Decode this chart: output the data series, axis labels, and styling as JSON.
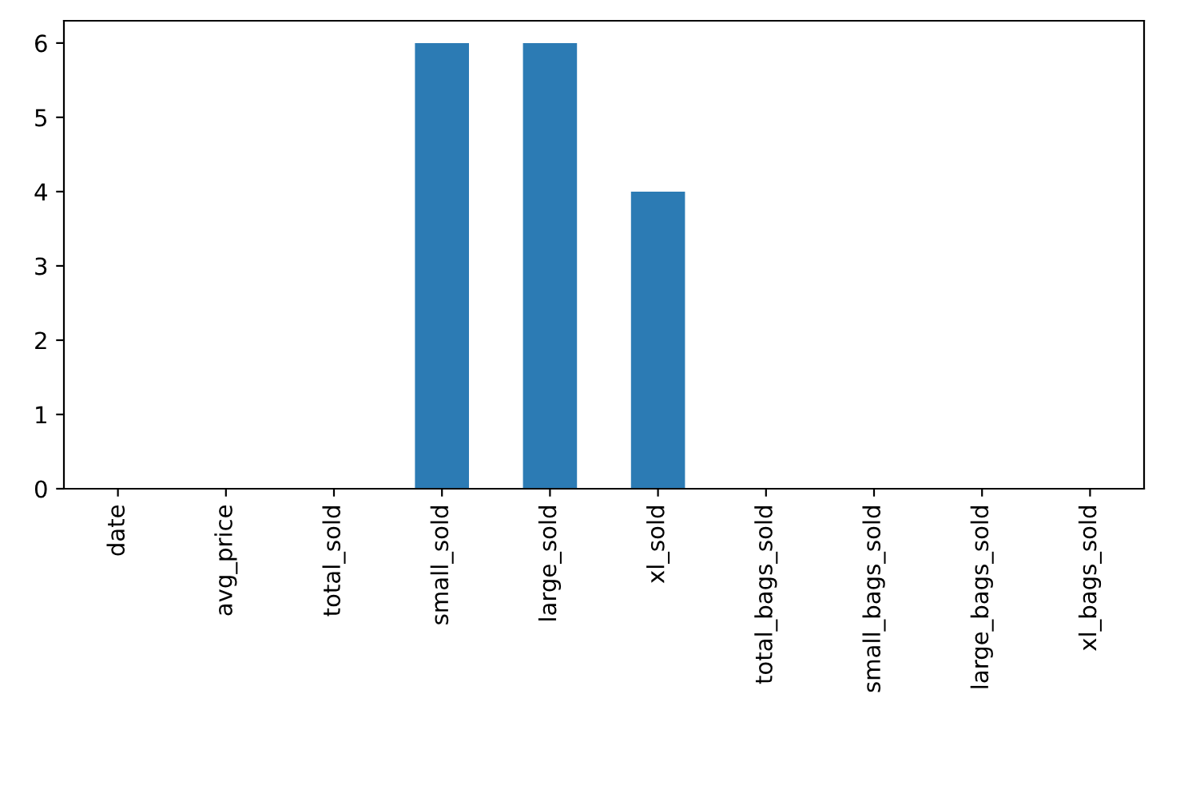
{
  "chart_data": {
    "type": "bar",
    "categories": [
      "date",
      "avg_price",
      "total_sold",
      "small_sold",
      "large_sold",
      "xl_sold",
      "total_bags_sold",
      "small_bags_sold",
      "large_bags_sold",
      "xl_bags_sold"
    ],
    "values": [
      0,
      0,
      0,
      6,
      6,
      4,
      0,
      0,
      0,
      0
    ],
    "color": "#2c7bb4",
    "ylim": [
      0,
      6.3
    ],
    "yticks": [
      0,
      1,
      2,
      3,
      4,
      5,
      6
    ],
    "grid": false,
    "legend": false
  }
}
